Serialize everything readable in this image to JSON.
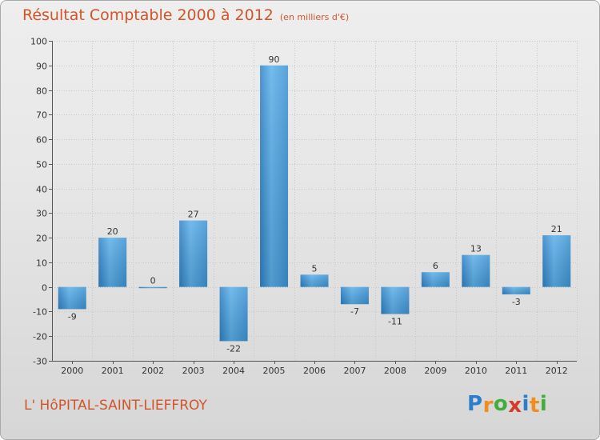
{
  "chart_data": {
    "type": "bar",
    "title": "Résultat Comptable 2000 à 2012",
    "subtitle": "(en milliers d'€)",
    "categories": [
      "2000",
      "2001",
      "2002",
      "2003",
      "2004",
      "2005",
      "2006",
      "2007",
      "2008",
      "2009",
      "2010",
      "2011",
      "2012"
    ],
    "values": [
      -9,
      20,
      0,
      27,
      -22,
      90,
      5,
      -7,
      -11,
      6,
      13,
      -3,
      21
    ],
    "xlabel": "",
    "ylabel": "",
    "ylim": [
      -30,
      100
    ],
    "yticks": [
      -30,
      -20,
      -10,
      0,
      10,
      20,
      30,
      40,
      50,
      60,
      70,
      80,
      90,
      100
    ],
    "grid": true,
    "legend": "none"
  },
  "footer": {
    "commune": "L' HôPITAL-SAINT-LIEFFROY"
  },
  "logo": {
    "letters": [
      "P",
      "r",
      "o",
      "x",
      "i",
      "t",
      "i"
    ]
  },
  "colors": {
    "title": "#d2552a",
    "bar_light": "#5cb0ea",
    "bar_dark": "#2877bb",
    "grid": "#c8c8c8",
    "axis": "#555555",
    "logo_letters": [
      "#2a7fcc",
      "#f08d1d",
      "#3fae3a",
      "#d83a2a",
      "#2a7fcc",
      "#f08d1d",
      "#3fae3a"
    ]
  }
}
